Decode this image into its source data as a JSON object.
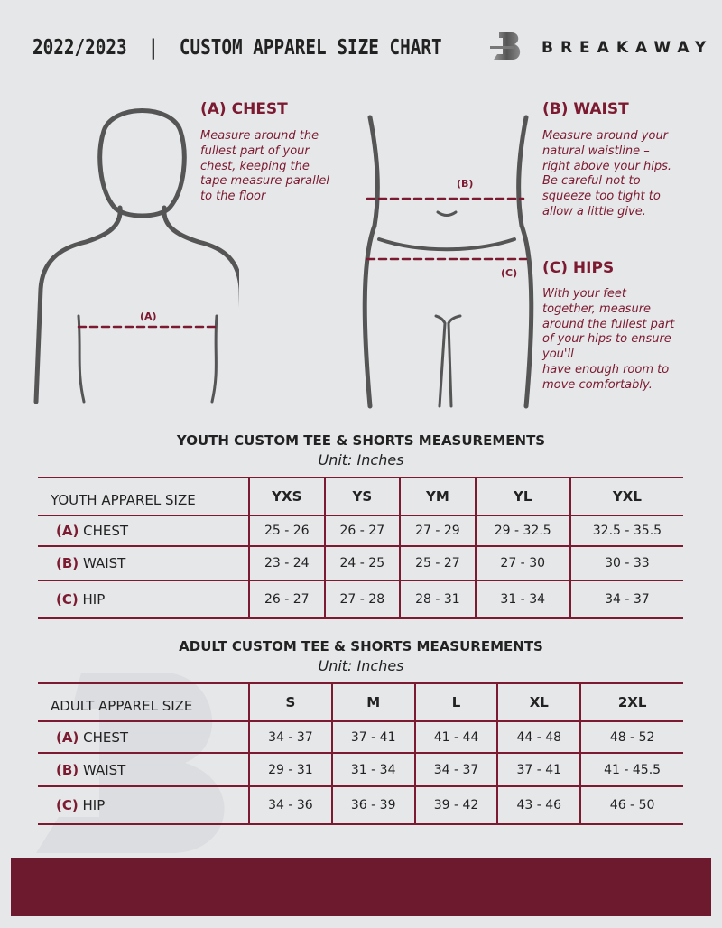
{
  "header": {
    "title": "2022/2023  |  CUSTOM APPAREL SIZE CHART",
    "brand": "BREAKAWAY",
    "logo_letter": "B"
  },
  "colors": {
    "accent": "#7b1a30",
    "footer": "#6e1a2e",
    "background": "#e6e7e9"
  },
  "chest": {
    "heading": "(A) CHEST",
    "marker": "(A)",
    "lines": [
      "Measure around the",
      "fullest part of your",
      "chest, keeping the",
      "tape measure parallel",
      "to the floor"
    ]
  },
  "waist": {
    "heading": "(B) WAIST",
    "marker": "(B)",
    "lines": [
      "Measure around your",
      "natural waistline –",
      "right above your hips.",
      "Be careful not to",
      "squeeze too tight to",
      "allow a little give."
    ]
  },
  "hips": {
    "heading": "(C) HIPS",
    "marker": "(C)",
    "lines": [
      "With your feet",
      "together, measure",
      "around the fullest part",
      "of your hips to ensure",
      "you'll",
      "have enough room to",
      "move comfortably."
    ]
  },
  "youth": {
    "title": "YOUTH CUSTOM TEE & SHORTS MEASUREMENTS",
    "unit": "Unit: Inches",
    "header": "YOUTH APPAREL SIZE",
    "sizes": [
      "YXS",
      "YS",
      "YM",
      "YL",
      "YXL"
    ],
    "rows": [
      {
        "tag": "(A)",
        "label": "CHEST",
        "values": [
          "25 - 26",
          "26 - 27",
          "27 - 29",
          "29 - 32.5",
          "32.5 - 35.5"
        ]
      },
      {
        "tag": "(B)",
        "label": "WAIST",
        "values": [
          "23 - 24",
          "24 - 25",
          "25 - 27",
          "27 - 30",
          "30 - 33"
        ]
      },
      {
        "tag": "(C)",
        "label": "HIP",
        "values": [
          "26 - 27",
          "27 - 28",
          "28 - 31",
          "31 - 34",
          "34 - 37"
        ]
      }
    ]
  },
  "adult": {
    "title": "ADULT CUSTOM TEE & SHORTS MEASUREMENTS",
    "unit": "Unit: Inches",
    "header": "ADULT APPAREL SIZE",
    "sizes": [
      "S",
      "M",
      "L",
      "XL",
      "2XL"
    ],
    "rows": [
      {
        "tag": "(A)",
        "label": "CHEST",
        "values": [
          "34 - 37",
          "37 - 41",
          "41 - 44",
          "44 - 48",
          "48 - 52"
        ]
      },
      {
        "tag": "(B)",
        "label": "WAIST",
        "values": [
          "29 - 31",
          "31 - 34",
          "34 - 37",
          "37 - 41",
          "41 - 45.5"
        ]
      },
      {
        "tag": "(C)",
        "label": "HIP",
        "values": [
          "34 - 36",
          "36 - 39",
          "39 - 42",
          "43 - 46",
          "46 - 50"
        ]
      }
    ]
  }
}
